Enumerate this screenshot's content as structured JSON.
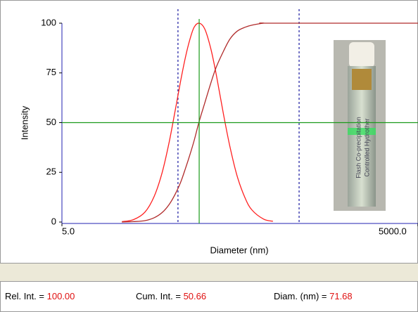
{
  "chart_data": {
    "type": "line",
    "x_label": "Diameter (nm)",
    "y_label": "Intensity",
    "log_x": true,
    "xlim": [
      5,
      5000
    ],
    "ylim": [
      0,
      100
    ],
    "xticks": [
      {
        "value": 5,
        "label": "5.0"
      },
      {
        "value": 5000,
        "label": "5000.0"
      }
    ],
    "yticks": [
      0,
      25,
      50,
      75,
      100
    ],
    "x": [
      16,
      20,
      25,
      30,
      35,
      40,
      45,
      50,
      55,
      60,
      65,
      71.68,
      80,
      90,
      100,
      115,
      130,
      150,
      175,
      200,
      250,
      300,
      5000
    ],
    "series": [
      {
        "color": "#ff2020",
        "values": [
          0.2,
          1.2,
          5,
          13,
          25,
          40,
          56,
          71,
          83,
          92,
          98,
          100,
          97,
          87,
          74,
          54,
          38,
          23,
          12,
          6,
          1.5,
          0.4,
          null
        ]
      },
      {
        "color": "#b02a2a",
        "values": [
          0,
          0.2,
          0.7,
          2.2,
          4.8,
          8.8,
          14,
          20,
          27,
          34,
          41,
          50.66,
          60,
          70,
          78,
          86,
          92,
          96,
          98,
          99,
          100,
          100,
          100
        ]
      }
    ],
    "markers": {
      "color": "#1a1aa0",
      "x": [
        47.5,
        498
      ]
    },
    "cursor": {
      "color": "#1a9a1a",
      "x": 71.68,
      "y": 50
    },
    "axis_color": "#2020b0",
    "photo_text": [
      "Flash Co-precipitation",
      "Controlled Hydrother"
    ]
  },
  "status_bar": [
    {
      "label": "Rel. Int. =",
      "value": "100.00"
    },
    {
      "label": "Cum. Int. =",
      "value": "50.66"
    },
    {
      "label": "Diam. (nm) =",
      "value": "71.68"
    }
  ]
}
